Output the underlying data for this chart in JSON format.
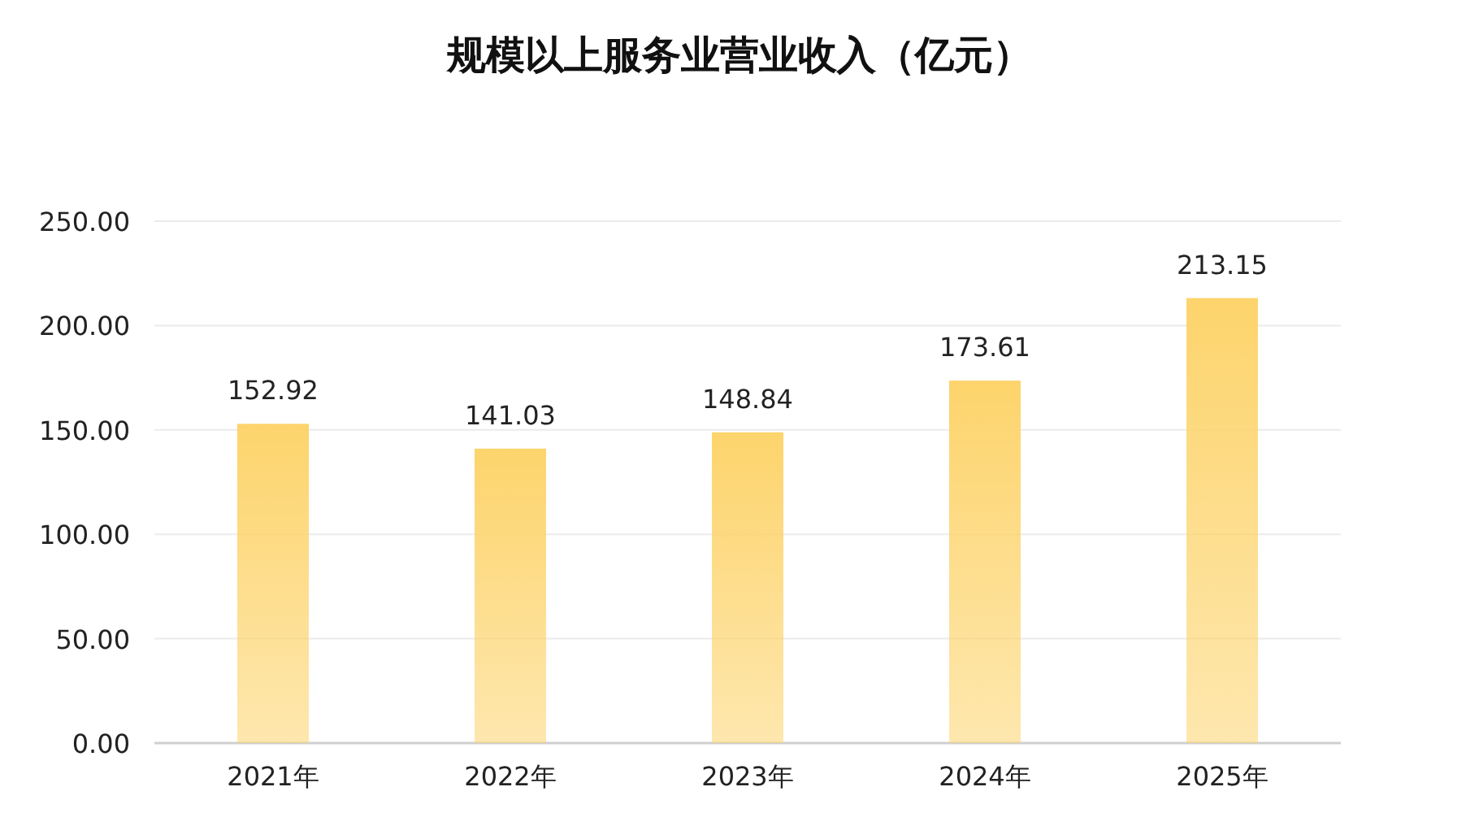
{
  "chart_data": {
    "type": "bar",
    "title": "规模以上服务业营业收入（亿元）",
    "categories": [
      "2021年",
      "2022年",
      "2023年",
      "2024年",
      "2025年"
    ],
    "values": [
      152.92,
      141.03,
      148.84,
      173.61,
      213.15
    ],
    "color": "#fdd46c",
    "ylim": [
      0,
      250
    ],
    "yticks": [
      {
        "value": 0,
        "label": "0.00"
      },
      {
        "value": 50,
        "label": "50.00"
      },
      {
        "value": 100,
        "label": "100.00"
      },
      {
        "value": 150,
        "label": "150.00"
      },
      {
        "value": 200,
        "label": "200.00"
      },
      {
        "value": 250,
        "label": "250.00"
      }
    ],
    "grid": "y",
    "data_labels": true
  }
}
